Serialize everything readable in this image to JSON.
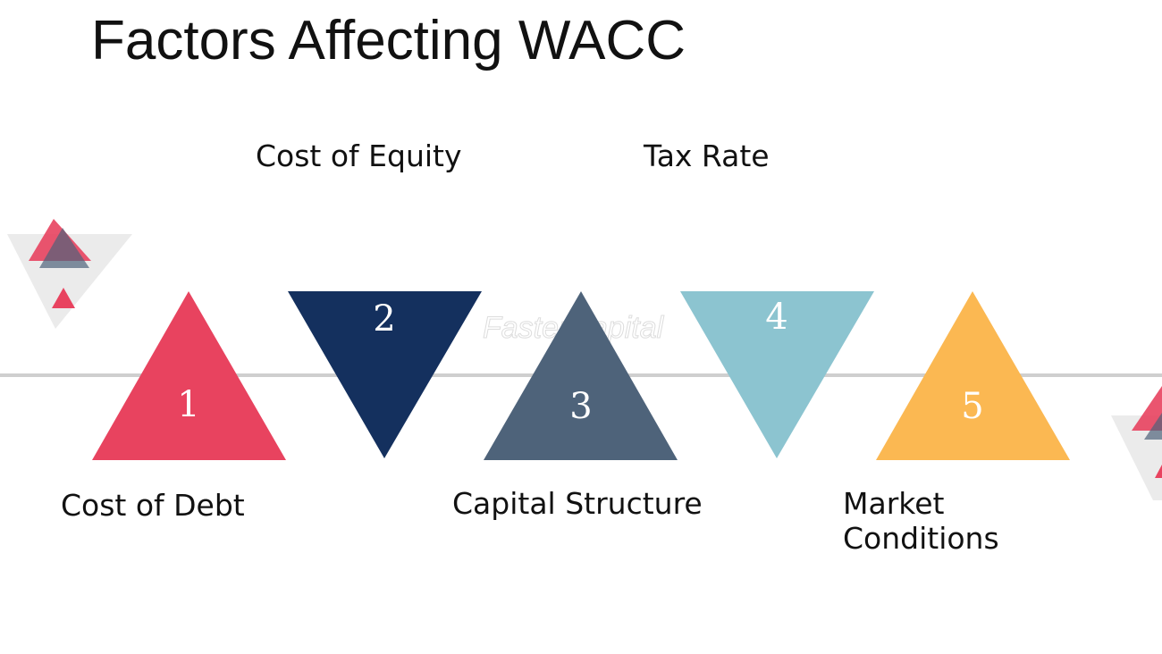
{
  "title": "Factors Affecting WACC",
  "watermark": "FasterCapital",
  "factors": [
    {
      "number": "1",
      "label": "Cost of Debt"
    },
    {
      "number": "2",
      "label": "Cost of Equity"
    },
    {
      "number": "3",
      "label": "Capital Structure"
    },
    {
      "number": "4",
      "label": "Tax Rate"
    },
    {
      "number": "5",
      "label": "Market Conditions"
    }
  ]
}
